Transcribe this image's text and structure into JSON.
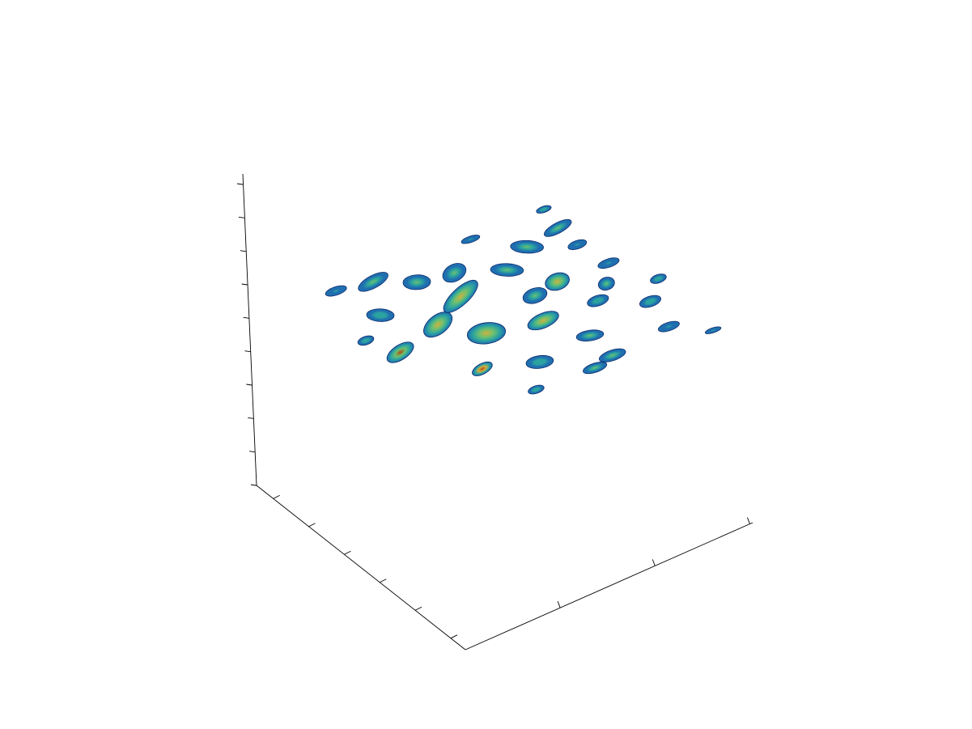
{
  "chart_data": {
    "type": "surface3d",
    "title": "",
    "xlabel": "",
    "ylabel": "",
    "zlabel": "",
    "tick_labels_visible": false,
    "grid": false,
    "legend": "none",
    "colormap": [
      "#1535a0",
      "#1f6fb0",
      "#2ba3a0",
      "#6cc070",
      "#d0b040",
      "#b04a10"
    ],
    "blobs": [
      {
        "u": 0.12,
        "v": 0.52,
        "w": 0.055,
        "h": 0.035,
        "rot": -15,
        "peak": 0.9
      },
      {
        "u": 0.25,
        "v": 0.75,
        "w": 0.04,
        "h": 0.025,
        "rot": -10,
        "peak": 0.95
      },
      {
        "u": 0.08,
        "v": 0.4,
        "w": 0.03,
        "h": 0.02,
        "rot": 0,
        "peak": 0.4
      },
      {
        "u": 0.2,
        "v": 0.3,
        "w": 0.05,
        "h": 0.03,
        "rot": 20,
        "peak": 0.45
      },
      {
        "u": 0.3,
        "v": 0.45,
        "w": 0.06,
        "h": 0.045,
        "rot": -20,
        "peak": 0.7
      },
      {
        "u": 0.38,
        "v": 0.58,
        "w": 0.07,
        "h": 0.05,
        "rot": 10,
        "peak": 0.75
      },
      {
        "u": 0.45,
        "v": 0.35,
        "w": 0.08,
        "h": 0.04,
        "rot": -25,
        "peak": 0.85
      },
      {
        "u": 0.4,
        "v": 0.2,
        "w": 0.05,
        "h": 0.035,
        "rot": 15,
        "peak": 0.55
      },
      {
        "u": 0.3,
        "v": 0.12,
        "w": 0.06,
        "h": 0.03,
        "rot": -10,
        "peak": 0.6
      },
      {
        "u": 0.18,
        "v": 0.1,
        "w": 0.04,
        "h": 0.02,
        "rot": 0,
        "peak": 0.3
      },
      {
        "u": 0.55,
        "v": 0.62,
        "w": 0.06,
        "h": 0.035,
        "rot": -5,
        "peak": 0.7
      },
      {
        "u": 0.6,
        "v": 0.78,
        "w": 0.05,
        "h": 0.025,
        "rot": 10,
        "peak": 0.5
      },
      {
        "u": 0.62,
        "v": 0.48,
        "w": 0.045,
        "h": 0.035,
        "rot": 0,
        "peak": 0.55
      },
      {
        "u": 0.52,
        "v": 0.22,
        "w": 0.045,
        "h": 0.04,
        "rot": -10,
        "peak": 0.5
      },
      {
        "u": 0.65,
        "v": 0.3,
        "w": 0.06,
        "h": 0.03,
        "rot": 20,
        "peak": 0.6
      },
      {
        "u": 0.72,
        "v": 0.45,
        "w": 0.045,
        "h": 0.04,
        "rot": 0,
        "peak": 0.75
      },
      {
        "u": 0.74,
        "v": 0.62,
        "w": 0.04,
        "h": 0.025,
        "rot": 0,
        "peak": 0.4
      },
      {
        "u": 0.8,
        "v": 0.88,
        "w": 0.04,
        "h": 0.02,
        "rot": 0,
        "peak": 0.35
      },
      {
        "u": 0.85,
        "v": 0.72,
        "w": 0.04,
        "h": 0.025,
        "rot": 0,
        "peak": 0.45
      },
      {
        "u": 0.82,
        "v": 0.55,
        "w": 0.03,
        "h": 0.03,
        "rot": 0,
        "peak": 0.5
      },
      {
        "u": 0.9,
        "v": 0.45,
        "w": 0.04,
        "h": 0.02,
        "rot": 0,
        "peak": 0.35
      },
      {
        "u": 0.78,
        "v": 0.22,
        "w": 0.06,
        "h": 0.03,
        "rot": 20,
        "peak": 0.5
      },
      {
        "u": 0.92,
        "v": 0.18,
        "w": 0.055,
        "h": 0.025,
        "rot": -10,
        "peak": 0.65
      },
      {
        "u": 0.95,
        "v": 0.62,
        "w": 0.03,
        "h": 0.02,
        "rot": 0,
        "peak": 0.4
      },
      {
        "u": 0.9,
        "v": 0.3,
        "w": 0.035,
        "h": 0.02,
        "rot": 0,
        "peak": 0.3
      },
      {
        "u": 0.58,
        "v": 0.92,
        "w": 0.05,
        "h": 0.025,
        "rot": 0,
        "peak": 0.5
      },
      {
        "u": 0.4,
        "v": 0.82,
        "w": 0.05,
        "h": 0.03,
        "rot": 10,
        "peak": 0.45
      },
      {
        "u": 0.88,
        "v": 0.98,
        "w": 0.03,
        "h": 0.012,
        "rot": 0,
        "peak": 0.3
      },
      {
        "u": 0.5,
        "v": 0.95,
        "w": 0.045,
        "h": 0.022,
        "rot": 0,
        "peak": 0.55
      },
      {
        "u": 0.3,
        "v": 0.95,
        "w": 0.03,
        "h": 0.018,
        "rot": 0,
        "peak": 0.45
      },
      {
        "u": 0.96,
        "v": 0.06,
        "w": 0.028,
        "h": 0.015,
        "rot": 0,
        "peak": 0.4
      },
      {
        "u": 0.68,
        "v": 0.08,
        "w": 0.035,
        "h": 0.015,
        "rot": 0,
        "peak": 0.35
      }
    ]
  }
}
